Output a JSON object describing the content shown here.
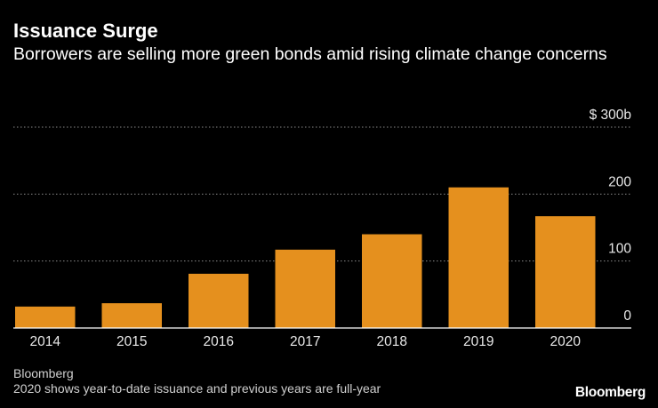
{
  "header": {
    "title": "Issuance Surge",
    "subtitle": "Borrowers are selling more green bonds amid rising climate change concerns"
  },
  "footer": {
    "source": "Bloomberg",
    "note": "2020 shows year-to-date issuance and previous years are full-year",
    "brand": "Bloomberg"
  },
  "colors": {
    "bar": "#e5901e",
    "grid": "#8a8a8a",
    "axis": "#ffffff",
    "background": "#000000"
  },
  "chart_data": {
    "type": "bar",
    "title": "Issuance Surge",
    "xlabel": "",
    "ylabel": "",
    "unit": "$ billions",
    "categories": [
      "2014",
      "2015",
      "2016",
      "2017",
      "2018",
      "2019",
      "2020"
    ],
    "values": [
      32,
      37,
      81,
      117,
      140,
      210,
      167
    ],
    "ylim": [
      0,
      300
    ],
    "yticks": [
      0,
      100,
      200,
      300
    ],
    "ytick_labels": [
      "0",
      "100",
      "200",
      "$ 300b"
    ],
    "grid": true
  }
}
